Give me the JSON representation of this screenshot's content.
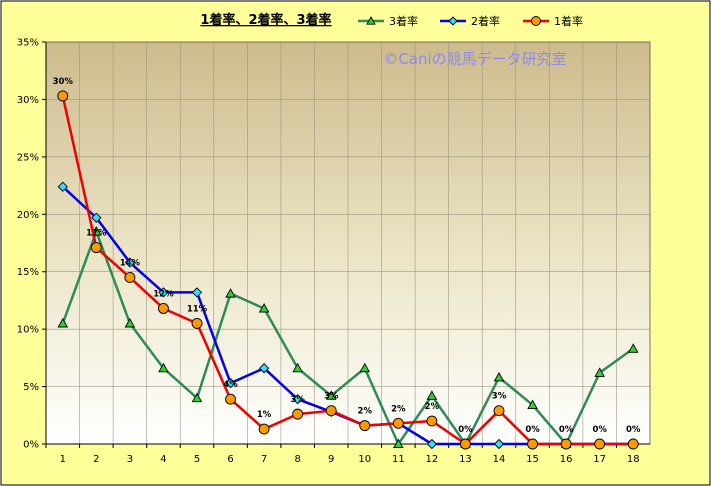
{
  "chart_data": {
    "type": "line",
    "title": "1着率、2着率、3着率",
    "watermark": "©Caniの競馬データ研究室",
    "xlabel": "",
    "ylabel": "",
    "categories": [
      "1",
      "2",
      "3",
      "4",
      "5",
      "6",
      "7",
      "8",
      "9",
      "10",
      "11",
      "12",
      "13",
      "14",
      "15",
      "16",
      "17",
      "18"
    ],
    "ylim": [
      0,
      35
    ],
    "yticks": [
      "0%",
      "5%",
      "10%",
      "15%",
      "20%",
      "25%",
      "30%",
      "35%"
    ],
    "grid": true,
    "legend_position": "top-right",
    "series": [
      {
        "name": "3着率",
        "color": "#2e8b57",
        "marker": "triangle",
        "marker_color": "#33cc33",
        "values": [
          10.5,
          18.5,
          10.5,
          6.6,
          4.0,
          13.1,
          11.8,
          6.6,
          4.2,
          6.6,
          0,
          4.2,
          0,
          5.8,
          3.4,
          0,
          6.2,
          8.3
        ]
      },
      {
        "name": "2着率",
        "color": "#0000ee",
        "marker": "diamond",
        "marker_color": "#33ddff",
        "values": [
          22.4,
          19.7,
          15.8,
          13.2,
          13.2,
          5.3,
          6.6,
          3.9,
          2.8,
          1.6,
          1.8,
          0,
          0,
          0,
          0,
          0,
          0,
          0
        ]
      },
      {
        "name": "1着率",
        "color": "#ee0000",
        "marker": "circle",
        "marker_color": "#ff9900",
        "values": [
          30.3,
          17.1,
          14.5,
          11.8,
          10.5,
          3.9,
          1.3,
          2.6,
          2.9,
          1.6,
          1.8,
          2.0,
          0,
          2.9,
          0,
          0,
          0,
          0
        ]
      }
    ],
    "data_labels": [
      "30%",
      "17%",
      "14%",
      "12%",
      "11%",
      "4%",
      "1%",
      "3%",
      "3%",
      "2%",
      "2%",
      "2%",
      "0%",
      "3%",
      "0%",
      "0%",
      "0%",
      "0%"
    ]
  }
}
